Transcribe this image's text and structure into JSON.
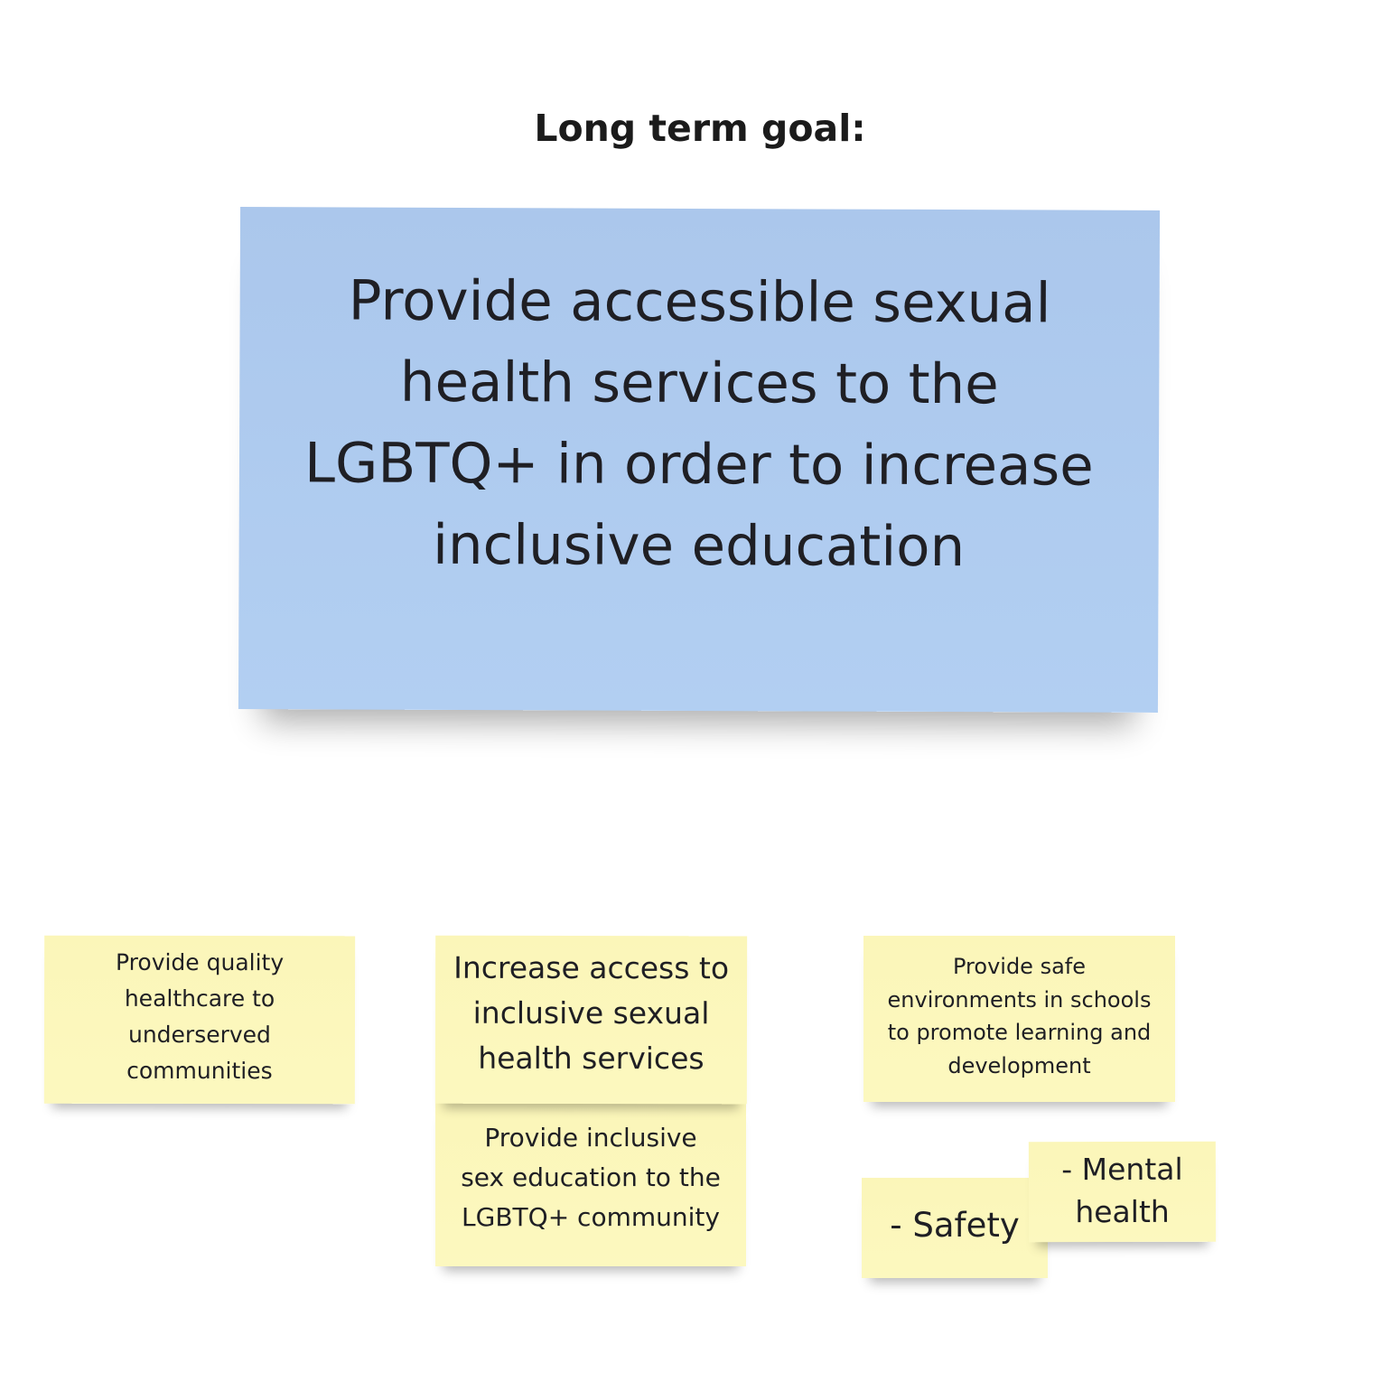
{
  "heading": "Long term goal:",
  "goal": {
    "lines": [
      "Provide accessible sexual",
      "health services to the",
      "LGBTQ+ in order to increase",
      "inclusive education"
    ],
    "color": "#afcbf0"
  },
  "notes": {
    "healthcare": {
      "lines": [
        "Provide quality",
        "healthcare to",
        "underserved",
        "communities"
      ]
    },
    "access": {
      "lines": [
        "Increase access to",
        "inclusive sexual",
        "health services"
      ]
    },
    "sex_education": {
      "lines": [
        "Provide inclusive",
        "sex education to the",
        "LGBTQ+ community"
      ]
    },
    "safe_environments": {
      "lines": [
        "Provide safe",
        "environments in schools",
        "to promote learning and",
        "development"
      ]
    },
    "safety": {
      "lines": [
        "- Safety"
      ]
    },
    "mental_health": {
      "lines": [
        "- Mental",
        "health"
      ]
    },
    "color": "#fcf7bc"
  }
}
